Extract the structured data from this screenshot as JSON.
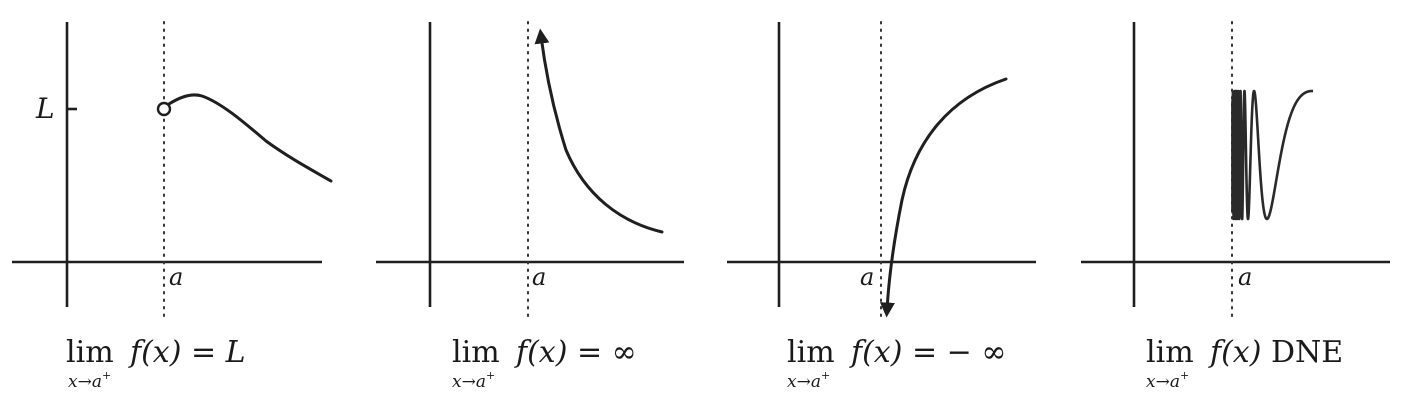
{
  "panels": [
    {
      "y_tick_label": "L",
      "x_tick_label": "a",
      "caption": {
        "lim": "lim",
        "expression": "f(x)",
        "relation": " = ",
        "result": "L",
        "sub_var": "x",
        "sub_arrow": "→",
        "sub_target": "a",
        "sub_sup": "+"
      }
    },
    {
      "x_tick_label": "a",
      "caption": {
        "lim": "lim",
        "expression": "f(x)",
        "relation": " = ",
        "result": "∞",
        "sub_var": "x",
        "sub_arrow": "→",
        "sub_target": "a",
        "sub_sup": "+"
      }
    },
    {
      "x_tick_label": "a",
      "caption": {
        "lim": "lim",
        "expression": "f(x)",
        "relation": " = ",
        "result": "− ∞",
        "sub_var": "x",
        "sub_arrow": "→",
        "sub_target": "a",
        "sub_sup": "+"
      }
    },
    {
      "x_tick_label": "a",
      "caption": {
        "lim": "lim",
        "expression": "f(x)",
        "relation": " ",
        "result": "DNE",
        "sub_var": "x",
        "sub_arrow": "→",
        "sub_target": "a",
        "sub_sup": "+"
      }
    }
  ]
}
